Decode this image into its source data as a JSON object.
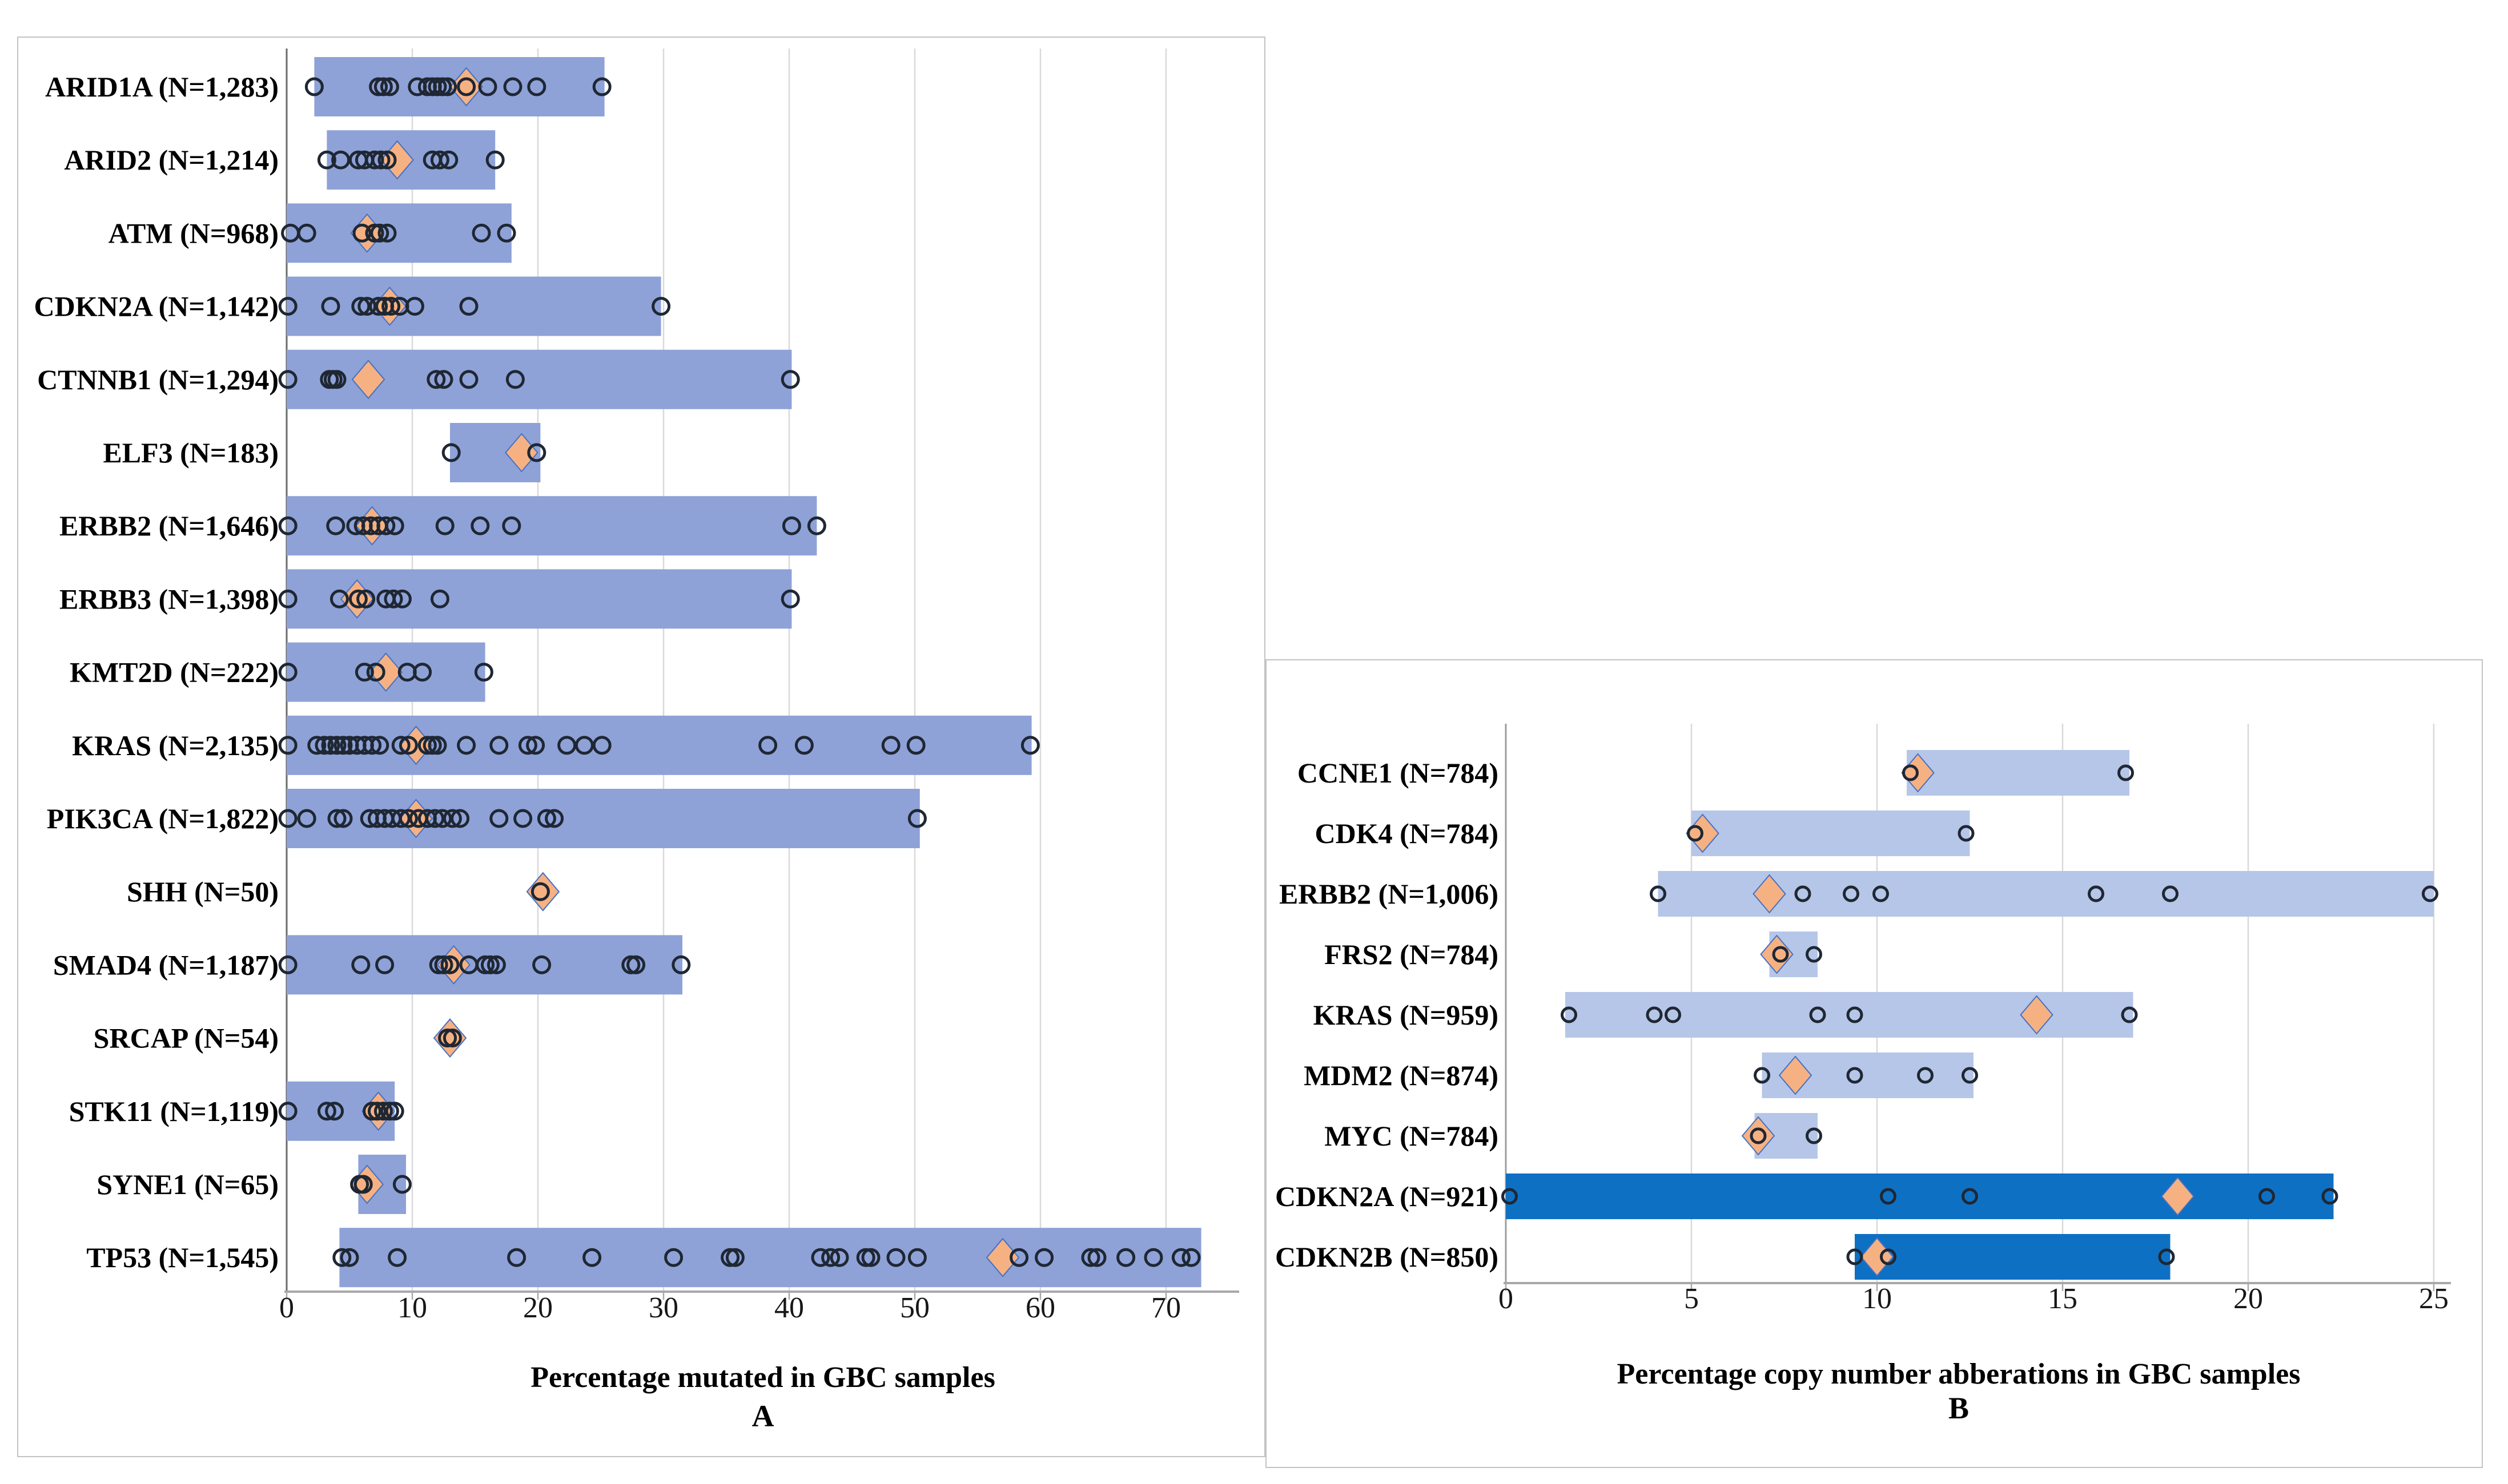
{
  "figure": {
    "description": "Two-panel floating bar chart of gene alterations in gallbladder cancer (GBC) samples. Bars show range across studies, open circles are individual study values, orange diamonds are pooled estimates.",
    "colors": {
      "panel_a_bar": "#8EA2D8",
      "panel_b_bar": "#B6C6E8",
      "panel_b_dark_bar": "#0E70C3",
      "diamond_fill": "#F6B183",
      "diamond_stroke": "#4472C4",
      "circle_stroke": "#1F2733",
      "gridline": "#D9D9D9",
      "axis_line": "#A8A8A8",
      "zero_line_a": "#6B6B6B",
      "zero_line_b": "#9E9E9E"
    }
  },
  "chart_data": [
    {
      "type": "bar",
      "panel_label": "A",
      "title": "Percentage mutated in GBC samples",
      "orientation": "horizontal-range",
      "xlim": [
        0,
        75.5
      ],
      "ticks": [
        0,
        10,
        20,
        30,
        40,
        50,
        60,
        70
      ],
      "grid": "vertical, every 10",
      "legend": "none",
      "rows": [
        {
          "label": "ARID1A (N=1,283)",
          "bar": [
            2.2,
            25.3
          ],
          "diamond": 14.3,
          "points": [
            2.2,
            7.3,
            7.7,
            8.2,
            10.4,
            11.2,
            11.6,
            12.0,
            12.4,
            12.8,
            14.3,
            16.0,
            18.0,
            19.9,
            25.1
          ]
        },
        {
          "label": "ARID2 (N=1,214)",
          "bar": [
            3.2,
            16.6
          ],
          "diamond": 8.8,
          "points": [
            3.2,
            4.3,
            5.7,
            6.2,
            7.0,
            7.5,
            8.0,
            11.6,
            12.2,
            12.9,
            16.6
          ]
        },
        {
          "label": "ATM (N=968)",
          "bar": [
            0,
            17.9
          ],
          "diamond": 6.4,
          "points": [
            0.3,
            1.6,
            6.0,
            7.0,
            7.4,
            8.0,
            15.5,
            17.5
          ]
        },
        {
          "label": "CDKN2A (N=1,142)",
          "bar": [
            0,
            29.8
          ],
          "diamond": 8.2,
          "points": [
            0.1,
            3.5,
            5.9,
            6.4,
            7.3,
            7.8,
            8.3,
            9.0,
            10.2,
            14.5,
            29.8
          ]
        },
        {
          "label": "CTNNB1 (N=1,294)",
          "bar": [
            0,
            40.2
          ],
          "diamond": 6.5,
          "points": [
            0.1,
            3.4,
            3.7,
            4.0,
            11.9,
            12.5,
            14.5,
            18.2,
            40.1
          ]
        },
        {
          "label": "ELF3 (N=183)",
          "bar": [
            13.0,
            20.2
          ],
          "diamond": 18.7,
          "points": [
            13.1,
            19.9
          ]
        },
        {
          "label": "ERBB2 (N=1,646)",
          "bar": [
            0,
            42.2
          ],
          "diamond": 6.8,
          "points": [
            0.1,
            3.9,
            5.5,
            6.1,
            6.7,
            7.3,
            7.9,
            8.6,
            12.6,
            15.4,
            17.9,
            40.2,
            42.2
          ]
        },
        {
          "label": "ERBB3 (N=1,398)",
          "bar": [
            0,
            40.2
          ],
          "diamond": 5.6,
          "points": [
            0.1,
            4.2,
            5.7,
            6.3,
            7.9,
            8.5,
            9.2,
            12.2,
            40.1
          ]
        },
        {
          "label": "KMT2D (N=222)",
          "bar": [
            0,
            15.8
          ],
          "diamond": 7.9,
          "points": [
            0.1,
            6.2,
            7.1,
            9.6,
            10.8,
            15.7
          ]
        },
        {
          "label": "KRAS (N=2,135)",
          "bar": [
            0,
            59.3
          ],
          "diamond": 10.3,
          "points": [
            0.1,
            2.4,
            3.0,
            3.5,
            4.0,
            4.5,
            5.0,
            5.6,
            6.2,
            6.8,
            7.4,
            9.1,
            9.7,
            11.2,
            11.6,
            12.0,
            14.3,
            16.9,
            19.2,
            19.8,
            22.3,
            23.7,
            25.1,
            38.3,
            41.2,
            48.1,
            50.1,
            59.2
          ]
        },
        {
          "label": "PIK3CA (N=1,822)",
          "bar": [
            0,
            50.4
          ],
          "diamond": 10.3,
          "points": [
            0.1,
            1.6,
            4.0,
            4.5,
            6.6,
            7.2,
            7.8,
            8.4,
            9.1,
            9.7,
            10.5,
            11.2,
            11.8,
            12.4,
            13.2,
            13.8,
            16.9,
            18.8,
            20.7,
            21.3,
            50.2
          ]
        },
        {
          "label": "SHH (N=50)",
          "bar": null,
          "diamond": 20.4,
          "points": [
            20.2
          ]
        },
        {
          "label": "SMAD4 (N=1,187)",
          "bar": [
            0,
            31.5
          ],
          "diamond": 13.3,
          "points": [
            0.1,
            5.9,
            7.8,
            12.1,
            12.5,
            13.0,
            14.5,
            15.8,
            16.2,
            16.7,
            20.3,
            27.4,
            27.8,
            31.4
          ]
        },
        {
          "label": "SRCAP (N=54)",
          "bar": null,
          "diamond": 13.0,
          "points": [
            12.8,
            13.2
          ]
        },
        {
          "label": "STK11 (N=1,119)",
          "bar": [
            0,
            8.6
          ],
          "diamond": 7.3,
          "points": [
            0.1,
            3.2,
            3.8,
            6.8,
            7.2,
            7.7,
            8.2,
            8.6
          ]
        },
        {
          "label": "SYNE1 (N=65)",
          "bar": [
            5.7,
            9.5
          ],
          "diamond": 6.4,
          "points": [
            5.8,
            6.1,
            9.2
          ]
        },
        {
          "label": "TP53 (N=1,545)",
          "bar": [
            4.2,
            72.8
          ],
          "diamond": 57.0,
          "points": [
            4.4,
            5.0,
            8.8,
            18.3,
            24.3,
            30.8,
            35.3,
            35.7,
            42.5,
            43.3,
            44.0,
            46.1,
            46.5,
            48.5,
            50.2,
            58.3,
            60.3,
            64.0,
            64.5,
            66.8,
            69.0,
            71.2,
            72.0
          ]
        }
      ]
    },
    {
      "type": "bar",
      "panel_label": "B",
      "title": "Percentage copy number abberations in GBC samples",
      "orientation": "horizontal-range",
      "xlim": [
        0,
        25.5
      ],
      "ticks": [
        0,
        5,
        10,
        15,
        20,
        25
      ],
      "grid": "vertical, every 5",
      "legend": "none",
      "rows": [
        {
          "label": "CCNE1 (N=784)",
          "bar": [
            10.8,
            16.8
          ],
          "diamond": 11.1,
          "points": [
            10.9,
            16.7
          ]
        },
        {
          "label": "CDK4  (N=784)",
          "bar": [
            5.0,
            12.5
          ],
          "diamond": 5.3,
          "points": [
            5.1,
            12.4
          ]
        },
        {
          "label": "ERBB2  (N=1,006)",
          "bar": [
            4.1,
            25.0
          ],
          "diamond": 7.1,
          "points": [
            4.1,
            8.0,
            9.3,
            10.1,
            15.9,
            17.9,
            24.9
          ]
        },
        {
          "label": "FRS2  (N=784)",
          "bar": [
            7.1,
            8.4
          ],
          "diamond": 7.3,
          "points": [
            7.4,
            8.3
          ]
        },
        {
          "label": "KRAS (N=959)",
          "bar": [
            1.6,
            16.9
          ],
          "diamond": 14.3,
          "points": [
            1.7,
            4.0,
            4.5,
            8.4,
            9.4,
            16.8
          ]
        },
        {
          "label": "MDM2 (N=874)",
          "bar": [
            6.9,
            12.6
          ],
          "diamond": 7.8,
          "points": [
            6.9,
            9.4,
            11.3,
            12.5
          ]
        },
        {
          "label": "MYC (N=784)",
          "bar": [
            6.7,
            8.4
          ],
          "diamond": 6.8,
          "points": [
            6.8,
            8.3
          ]
        },
        {
          "label": "CDKN2A (N=921)",
          "bar": [
            0,
            22.3
          ],
          "dark": true,
          "diamond": 18.1,
          "points": [
            0.1,
            10.3,
            12.5,
            20.5,
            22.2
          ]
        },
        {
          "label": "CDKN2B (N=850)",
          "bar": [
            9.4,
            17.9
          ],
          "dark": true,
          "diamond": 10.0,
          "points": [
            9.4,
            10.3,
            17.8
          ]
        }
      ]
    }
  ]
}
